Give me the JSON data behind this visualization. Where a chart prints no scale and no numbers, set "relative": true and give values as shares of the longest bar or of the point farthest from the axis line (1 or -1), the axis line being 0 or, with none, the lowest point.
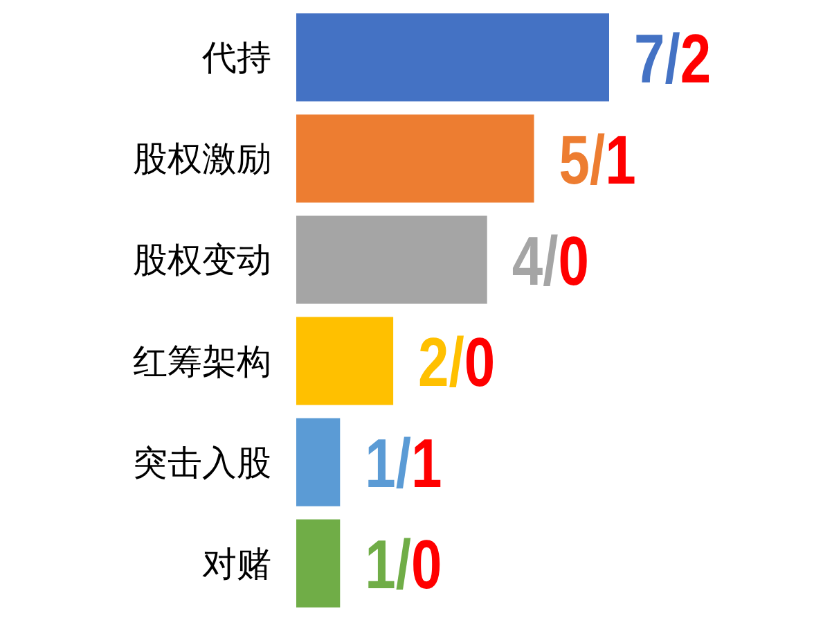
{
  "chart_data": {
    "type": "bar",
    "orientation": "horizontal",
    "categories": [
      "代持",
      "股权激励",
      "股权变动",
      "红筹架构",
      "突击入股",
      "对赌"
    ],
    "relative": true,
    "values": [
      1,
      0.76,
      0.61,
      0.31,
      0.14,
      0.14
    ],
    "colors": [
      "#4472c4",
      "#ed7d31",
      "#a5a5a5",
      "#ffc000",
      "#5b9bd5",
      "#70ad47"
    ],
    "annotations": [
      "7/2",
      "5/1",
      "4/0",
      "2/0",
      "1/1",
      "1/0"
    ]
  }
}
